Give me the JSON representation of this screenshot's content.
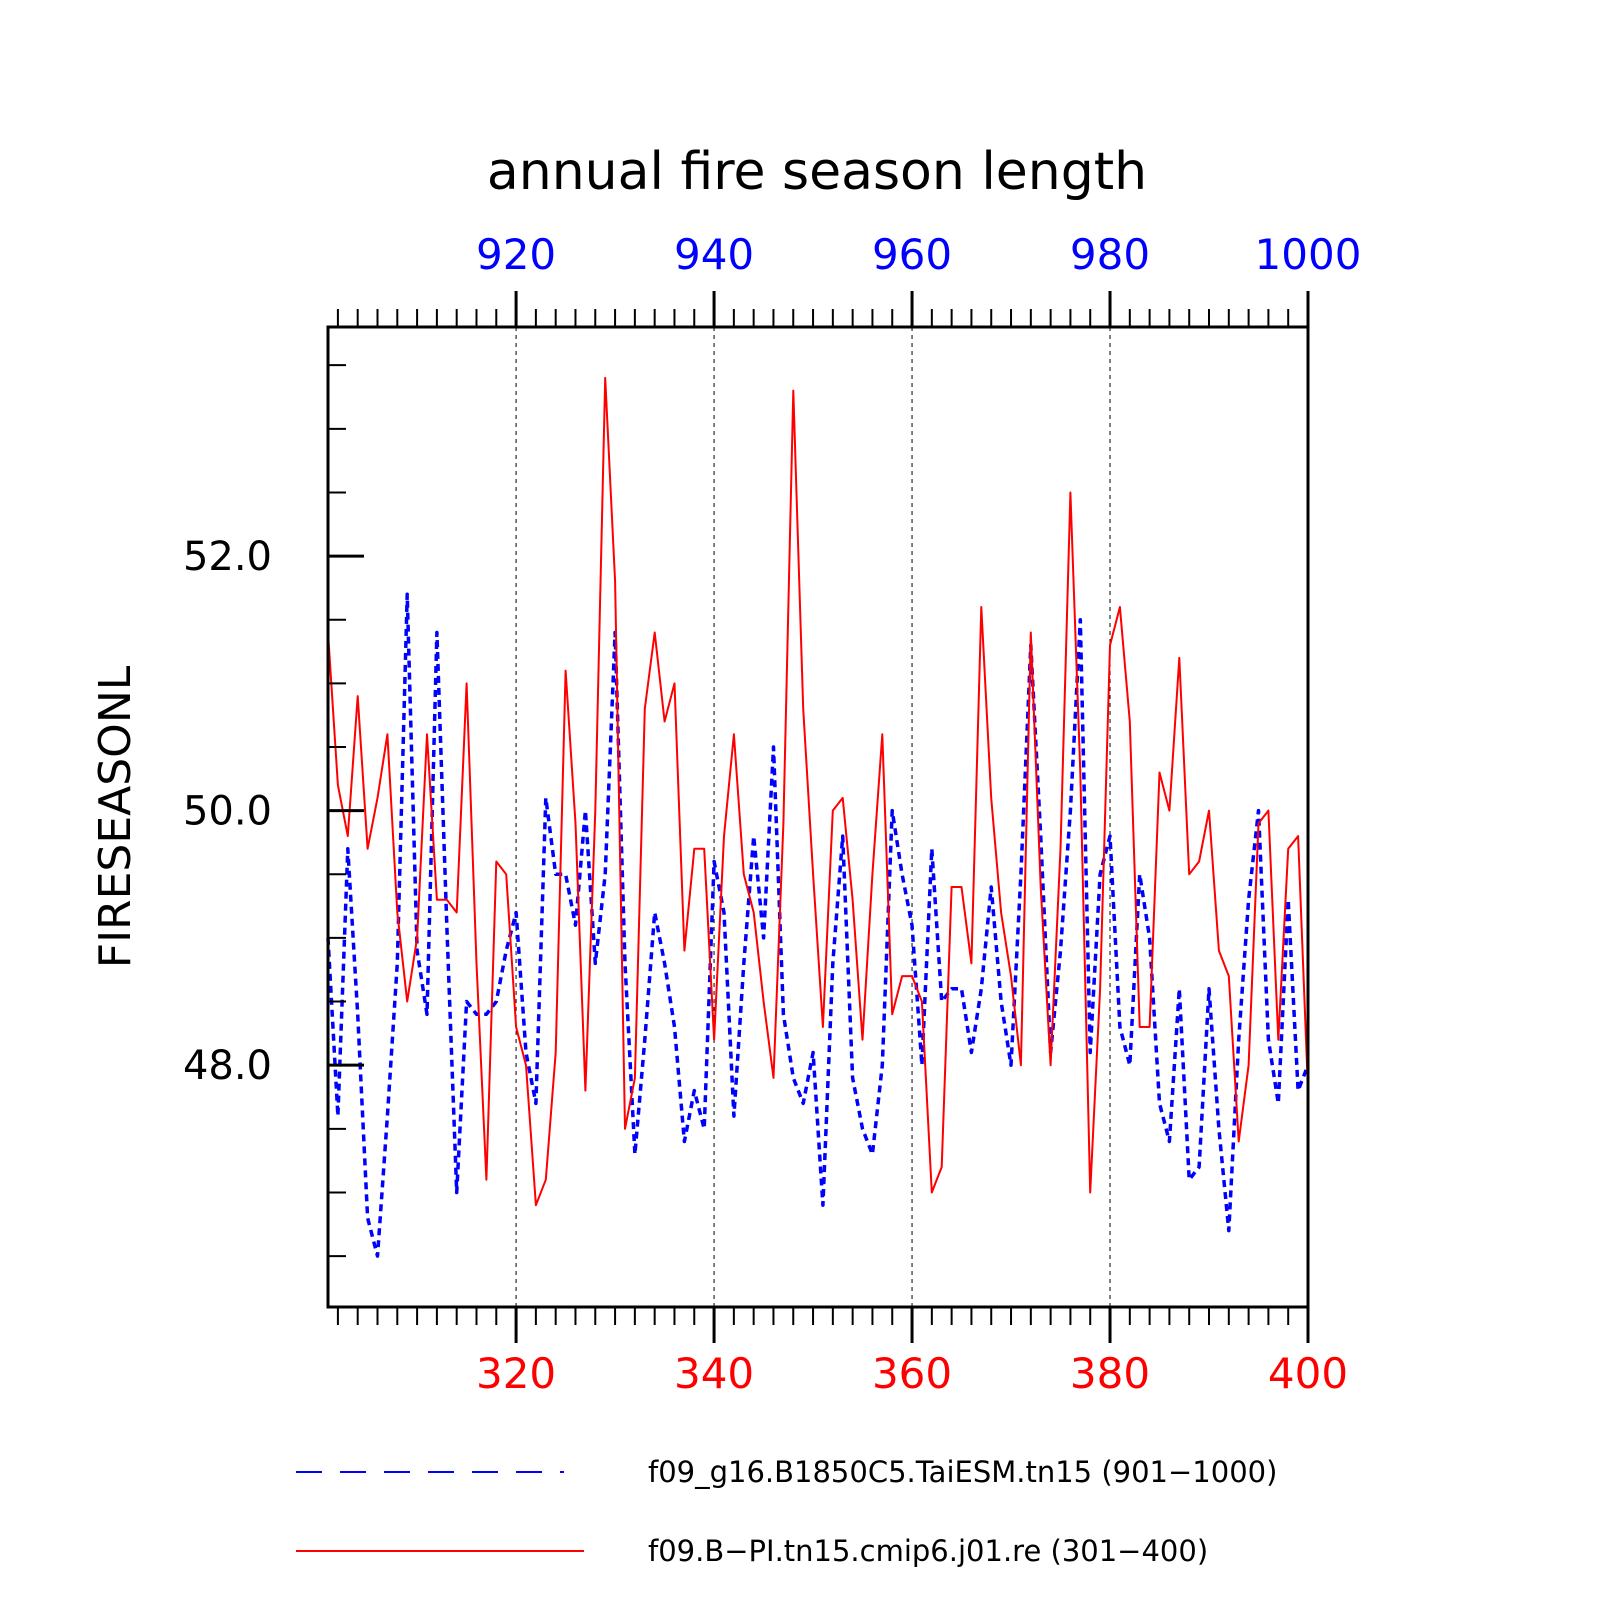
{
  "chart_data": {
    "type": "line",
    "title": "annual fire season length",
    "ylabel": "FIRESEASONL",
    "ylim": [
      46.1,
      53.8
    ],
    "y_ticks": [
      {
        "value": 48.0,
        "label": "48.0"
      },
      {
        "value": 50.0,
        "label": "50.0"
      },
      {
        "value": 52.0,
        "label": "52.0"
      }
    ],
    "x_bottom": {
      "range": [
        301,
        400
      ],
      "ticks": [
        {
          "value": 320,
          "label": "320"
        },
        {
          "value": 340,
          "label": "340"
        },
        {
          "value": 360,
          "label": "360"
        },
        {
          "value": 380,
          "label": "380"
        },
        {
          "value": 400,
          "label": "400"
        }
      ],
      "color": "#ff0000"
    },
    "x_top": {
      "range": [
        901,
        1000
      ],
      "ticks": [
        {
          "value": 920,
          "label": "920"
        },
        {
          "value": 940,
          "label": "940"
        },
        {
          "value": 960,
          "label": "960"
        },
        {
          "value": 980,
          "label": "980"
        },
        {
          "value": 1000,
          "label": "1000"
        }
      ],
      "color": "#0000ff"
    },
    "grid": "vertical dashed at labeled x ticks",
    "legend_position": "bottom",
    "series": [
      {
        "name": "f09_g16.B1850C5.TaiESM.tn15 (901−1000)",
        "color": "#0000ff",
        "style": "dashed",
        "x_start": 901,
        "values": [
          49.0,
          47.6,
          49.7,
          48.4,
          46.8,
          46.5,
          47.6,
          48.8,
          51.7,
          48.9,
          48.4,
          51.4,
          49.1,
          47.0,
          48.5,
          48.4,
          48.4,
          48.5,
          48.9,
          49.2,
          48.1,
          47.7,
          50.1,
          49.5,
          49.5,
          49.1,
          50.0,
          48.8,
          49.5,
          51.4,
          48.8,
          47.3,
          48.2,
          49.2,
          48.8,
          48.3,
          47.4,
          47.8,
          47.5,
          49.6,
          49.2,
          47.6,
          48.8,
          49.8,
          49.0,
          50.5,
          48.4,
          47.9,
          47.7,
          48.1,
          46.9,
          48.8,
          49.8,
          47.9,
          47.5,
          47.3,
          48.0,
          50.0,
          49.5,
          49.1,
          48.0,
          49.7,
          48.5,
          48.6,
          48.6,
          48.1,
          48.6,
          49.4,
          48.5,
          48.0,
          49.5,
          51.3,
          49.8,
          48.1,
          48.9,
          50.0,
          51.5,
          48.1,
          49.5,
          49.8,
          48.3,
          48.0,
          49.5,
          49.0,
          47.7,
          47.4,
          48.6,
          47.1,
          47.2,
          48.6,
          47.5,
          46.7,
          48.2,
          49.3,
          50.0,
          48.2,
          47.7,
          49.3,
          47.8,
          48.0
        ]
      },
      {
        "name": "f09.B−PI.tn15.cmip6.j01.re (301−400)",
        "color": "#ff0000",
        "style": "solid",
        "x_start": 301,
        "values": [
          51.4,
          50.2,
          49.8,
          50.9,
          49.7,
          50.1,
          50.6,
          49.2,
          48.5,
          49.0,
          50.6,
          49.3,
          49.3,
          49.2,
          51.0,
          48.8,
          47.1,
          49.6,
          49.5,
          48.3,
          48.0,
          46.9,
          47.1,
          48.1,
          51.1,
          49.9,
          47.8,
          50.0,
          53.4,
          51.8,
          47.5,
          47.9,
          50.8,
          51.4,
          50.7,
          51.0,
          48.9,
          49.7,
          49.7,
          48.2,
          49.8,
          50.6,
          49.5,
          49.2,
          48.5,
          47.9,
          49.9,
          53.3,
          50.8,
          49.5,
          48.3,
          50.0,
          50.1,
          49.3,
          48.2,
          49.5,
          50.6,
          48.4,
          48.7,
          48.7,
          48.5,
          47.0,
          47.2,
          49.4,
          49.4,
          48.8,
          51.6,
          50.1,
          49.2,
          48.7,
          48.0,
          51.4,
          49.4,
          48.0,
          49.7,
          52.5,
          50.3,
          47.0,
          48.6,
          51.3,
          51.6,
          50.7,
          48.3,
          48.3,
          50.3,
          50.0,
          51.2,
          49.5,
          49.6,
          50.0,
          48.9,
          48.7,
          47.4,
          48.0,
          49.9,
          50.0,
          48.2,
          49.7,
          49.8,
          47.8
        ]
      }
    ]
  }
}
